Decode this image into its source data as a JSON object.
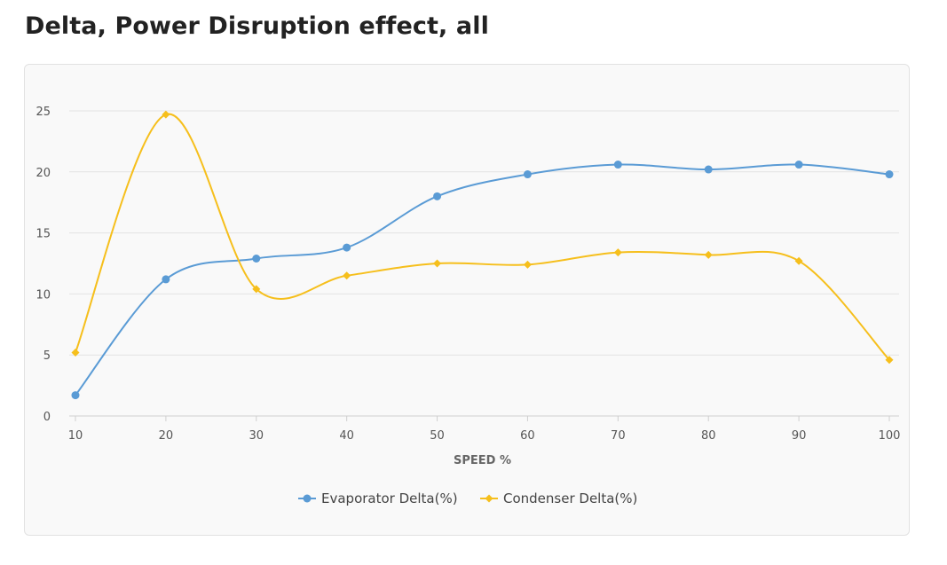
{
  "title": "Delta, Power Disruption effect, all",
  "chart_data": {
    "type": "line",
    "x": [
      10,
      20,
      30,
      40,
      50,
      60,
      70,
      80,
      90,
      100
    ],
    "xlabel": "SPEED %",
    "ylabel": "",
    "ylim": [
      0,
      25
    ],
    "yticks": [
      0,
      5,
      10,
      15,
      20,
      25
    ],
    "grid": true,
    "legend_position": "bottom",
    "series": [
      {
        "name": "Evaporator Delta(%)",
        "color": "#5a9bd5",
        "marker": "circle",
        "values": [
          1.7,
          11.2,
          12.9,
          13.8,
          18.0,
          19.8,
          20.6,
          20.2,
          20.6,
          19.8
        ]
      },
      {
        "name": "Condenser Delta(%)",
        "color": "#f6bf1c",
        "marker": "diamond",
        "values": [
          5.2,
          24.7,
          10.4,
          11.5,
          12.5,
          12.4,
          13.4,
          13.2,
          12.7,
          4.6
        ]
      }
    ]
  }
}
